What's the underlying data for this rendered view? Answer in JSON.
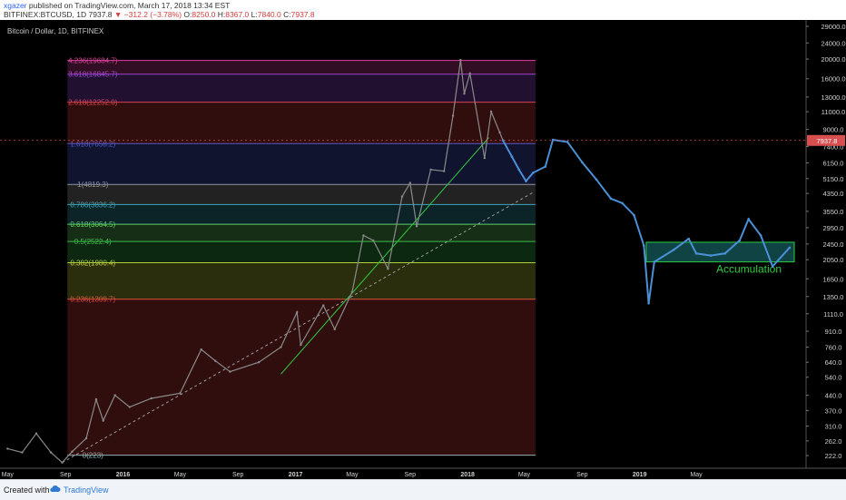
{
  "header": {
    "author": "xgazer",
    "published_text": "published on TradingView.com, March 17, 2018 13:34 EST",
    "symbol": "BITFINEX:BTCUSD, 1D",
    "last": "7937.8",
    "change": "−312.2 (−3.78%)",
    "open_label": "O:",
    "open": "8250.0",
    "high_label": "H:",
    "high": "8367.0",
    "low_label": "L:",
    "low": "7840.0",
    "close_label": "C:",
    "close": "7937.8"
  },
  "footer": {
    "created_with": "Created with",
    "brand": "TradingView"
  },
  "colors": {
    "background": "#000000",
    "candle": "#8a8a8a",
    "projection": "#4a90d6",
    "accumulation_box": "#2ec4c4",
    "accumulation_text": "#2ecc40",
    "trendline": "#2ecc40",
    "last_price_badge": "#d94f4f"
  },
  "chart_data": {
    "type": "line",
    "title": "Bitcoin / Dollar, 1D, BITFINEX",
    "x_axis_labels": [
      "May",
      "Sep",
      "2016",
      "May",
      "Sep",
      "2017",
      "May",
      "Sep",
      "2018",
      "May",
      "Sep",
      "2019",
      "May"
    ],
    "y_axis_labels": [
      "29000.0",
      "24000.0",
      "20000.0",
      "16000.0",
      "13000.0",
      "11000.0",
      "9000.0",
      "7400.0",
      "6150.0",
      "5150.0",
      "4350.0",
      "3550.0",
      "2950.0",
      "2450.0",
      "2050.0",
      "1650.0",
      "1350.0",
      "1110.0",
      "910.0",
      "760.0",
      "640.0",
      "540.0",
      "440.0",
      "370.0",
      "310.0",
      "262.0",
      "222.0"
    ],
    "y_scale": "log",
    "last_price": "7937.8",
    "fib_levels": [
      {
        "label": "0(223)",
        "price": 223,
        "color": "#8fbcbc"
      },
      {
        "label": "0.236(1309.7)",
        "price": 1309.7,
        "color": "#e04040"
      },
      {
        "label": "0.382(1980.4)",
        "price": 1980.4,
        "color": "#c6d23a"
      },
      {
        "label": "0.5(2522.4)",
        "price": 2522.4,
        "color": "#3ab84a"
      },
      {
        "label": "0.618(3064.5)",
        "price": 3064.5,
        "color": "#5fd35f"
      },
      {
        "label": "0.786(3836.2)",
        "price": 3836.2,
        "color": "#36a6b8"
      },
      {
        "label": "1(4819.3)",
        "price": 4819.3,
        "color": "#9a9a9a"
      },
      {
        "label": "1.618(7658.2)",
        "price": 7658.2,
        "color": "#4c5bd4"
      },
      {
        "label": "2.618(12252.0)",
        "price": 12252,
        "color": "#e04040"
      },
      {
        "label": "3.618(16845.7)",
        "price": 16845.7,
        "color": "#9848d8"
      },
      {
        "label": "4.236(19684.7)",
        "price": 19684.7,
        "color": "#e040a0"
      }
    ],
    "series": [
      {
        "values": [
          [
            "2015-05-01",
            240
          ],
          [
            "2015-06-01",
            230
          ],
          [
            "2015-07-01",
            285
          ],
          [
            "2015-08-01",
            230
          ],
          [
            "2015-08-25",
            205
          ],
          [
            "2015-09-15",
            232
          ],
          [
            "2015-10-15",
            270
          ],
          [
            "2015-11-05",
            420
          ],
          [
            "2015-11-20",
            330
          ],
          [
            "2015-12-15",
            440
          ],
          [
            "2016-01-15",
            385
          ],
          [
            "2016-03-01",
            425
          ],
          [
            "2016-05-01",
            450
          ],
          [
            "2016-06-15",
            740
          ],
          [
            "2016-07-15",
            650
          ],
          [
            "2016-08-15",
            575
          ],
          [
            "2016-10-15",
            640
          ],
          [
            "2016-12-01",
            760
          ],
          [
            "2017-01-04",
            1130
          ],
          [
            "2017-01-12",
            780
          ],
          [
            "2017-03-01",
            1220
          ],
          [
            "2017-03-25",
            930
          ],
          [
            "2017-05-01",
            1420
          ],
          [
            "2017-05-25",
            2700
          ],
          [
            "2017-06-15",
            2550
          ],
          [
            "2017-07-16",
            1850
          ],
          [
            "2017-08-15",
            4200
          ],
          [
            "2017-09-01",
            4900
          ],
          [
            "2017-09-15",
            3000
          ],
          [
            "2017-10-15",
            5700
          ],
          [
            "2017-11-12",
            5600
          ],
          [
            "2017-12-01",
            10500
          ],
          [
            "2017-12-17",
            19800
          ],
          [
            "2017-12-25",
            13500
          ],
          [
            "2018-01-06",
            17000
          ],
          [
            "2018-02-06",
            6500
          ],
          [
            "2018-02-20",
            11000
          ],
          [
            "2018-03-10",
            8700
          ],
          [
            "2018-03-17",
            7937.8
          ]
        ]
      },
      {
        "values": [
          [
            "2018-03-17",
            7937.8
          ],
          [
            "2018-04-05",
            6600
          ],
          [
            "2018-04-20",
            5700
          ],
          [
            "2018-05-05",
            5000
          ],
          [
            "2018-05-20",
            5500
          ],
          [
            "2018-06-15",
            5900
          ],
          [
            "2018-07-01",
            8000
          ],
          [
            "2018-08-01",
            7800
          ],
          [
            "2018-09-01",
            6200
          ],
          [
            "2018-10-01",
            5100
          ],
          [
            "2018-11-01",
            4100
          ],
          [
            "2018-11-25",
            3900
          ],
          [
            "2018-12-20",
            3400
          ],
          [
            "2019-01-10",
            2400
          ],
          [
            "2019-01-20",
            1250
          ],
          [
            "2019-02-01",
            2000
          ],
          [
            "2019-03-15",
            2300
          ],
          [
            "2019-04-15",
            2600
          ],
          [
            "2019-05-01",
            2200
          ],
          [
            "2019-06-01",
            2150
          ],
          [
            "2019-07-01",
            2200
          ],
          [
            "2019-08-01",
            2550
          ],
          [
            "2019-08-20",
            3250
          ],
          [
            "2019-09-15",
            2700
          ],
          [
            "2019-10-10",
            1900
          ],
          [
            "2019-11-15",
            2350
          ]
        ]
      }
    ],
    "annotations": [
      {
        "text": "Accumulation",
        "box_price_top": 2500,
        "box_price_bottom": 2000
      }
    ]
  }
}
